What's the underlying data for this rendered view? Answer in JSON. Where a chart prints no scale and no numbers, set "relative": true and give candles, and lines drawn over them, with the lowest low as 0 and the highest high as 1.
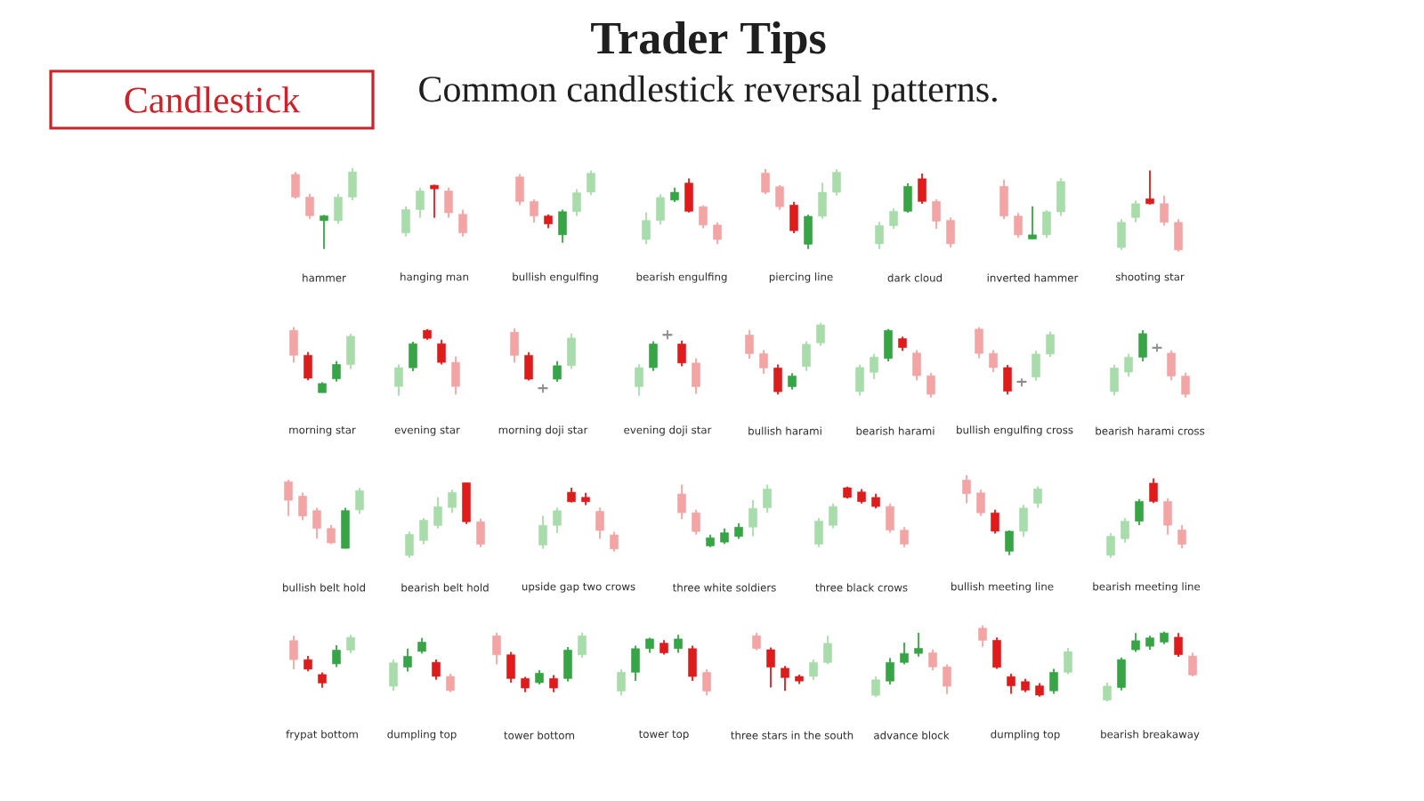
{
  "chart_data": [
    {
      "type": "other",
      "title": "Trader Tips",
      "subtitle": "Common candlestick reversal patterns.",
      "annotations": [
        "Candlestick"
      ]
    },
    {
      "type": "candlestick",
      "relative": true,
      "xlabel": "hammer",
      "categories": [
        null,
        null,
        null,
        null,
        null
      ],
      "ohlc": [
        [
          0.92,
          0.95,
          0.62,
          0.64
        ],
        [
          0.64,
          0.68,
          0.37,
          0.41
        ],
        [
          0.35,
          0.42,
          0,
          0.41
        ],
        [
          0.35,
          0.68,
          0.31,
          0.64
        ],
        [
          0.64,
          1,
          0.6,
          0.95
        ]
      ],
      "colors": [
        "#f3a5a5",
        "#f3a5a5",
        "#37a546",
        "#a9dcab",
        "#a9dcab"
      ]
    },
    {
      "type": "candlestick",
      "relative": true,
      "xlabel": "hanging man",
      "categories": [
        null,
        null,
        null,
        null,
        null
      ],
      "ohlc": [
        [
          0.07,
          0.58,
          0,
          0.52
        ],
        [
          0.52,
          0.94,
          0.36,
          0.88
        ],
        [
          0.99,
          1,
          0.36,
          0.92
        ],
        [
          0.88,
          0.94,
          0.36,
          0.46
        ],
        [
          0.43,
          0.52,
          0,
          0.07
        ]
      ],
      "colors": [
        "#a9dcab",
        "#a9dcab",
        "#e01b1b",
        "#f3a5a5",
        "#f3a5a5"
      ]
    },
    {
      "type": "candlestick",
      "relative": true,
      "xlabel": "bullish engulfing",
      "categories": [
        null,
        null,
        null,
        null,
        null,
        null
      ],
      "ohlc": [
        [
          0.91,
          0.95,
          0.52,
          0.57
        ],
        [
          0.57,
          0.6,
          0.28,
          0.37
        ],
        [
          0.37,
          0.39,
          0.2,
          0.26
        ],
        [
          0.11,
          0.46,
          0,
          0.43
        ],
        [
          0.43,
          0.74,
          0.37,
          0.69
        ],
        [
          0.7,
          1,
          0.66,
          0.96
        ]
      ],
      "colors": [
        "#f3a5a5",
        "#f3a5a5",
        "#e01b1b",
        "#37a546",
        "#a9dcab",
        "#a9dcab"
      ]
    },
    {
      "type": "candlestick",
      "relative": true,
      "xlabel": "bearish engulfing",
      "categories": [
        null,
        null,
        null,
        null,
        null,
        null
      ],
      "ohlc": [
        [
          0.07,
          0.48,
          0,
          0.36
        ],
        [
          0.36,
          0.76,
          0.3,
          0.71
        ],
        [
          0.67,
          0.86,
          0.64,
          0.79
        ],
        [
          0.93,
          1,
          0.48,
          0.5
        ],
        [
          0.57,
          0.59,
          0.24,
          0.29
        ],
        [
          0.29,
          0.33,
          0,
          0.07
        ]
      ],
      "colors": [
        "#a9dcab",
        "#a9dcab",
        "#37a546",
        "#e01b1b",
        "#f3a5a5",
        "#f3a5a5"
      ]
    },
    {
      "type": "candlestick",
      "relative": true,
      "xlabel": "piercing line",
      "categories": [
        null,
        null,
        null,
        null,
        null,
        null
      ],
      "ohlc": [
        [
          0.95,
          1,
          0.69,
          0.71
        ],
        [
          0.78,
          0.8,
          0.49,
          0.53
        ],
        [
          0.55,
          0.59,
          0.2,
          0.23
        ],
        [
          0.06,
          0.43,
          0,
          0.41
        ],
        [
          0.41,
          0.83,
          0.38,
          0.71
        ],
        [
          0.71,
          1,
          0.67,
          0.96
        ]
      ],
      "colors": [
        "#f3a5a5",
        "#f3a5a5",
        "#e01b1b",
        "#37a546",
        "#a9dcab",
        "#a9dcab"
      ]
    },
    {
      "type": "candlestick",
      "relative": true,
      "xlabel": "dark cloud",
      "categories": [
        null,
        null,
        null,
        null,
        null,
        null
      ],
      "ohlc": [
        [
          0.07,
          0.36,
          0,
          0.31
        ],
        [
          0.31,
          0.54,
          0.27,
          0.5
        ],
        [
          0.5,
          0.87,
          0.48,
          0.83
        ],
        [
          0.93,
          1,
          0.6,
          0.63
        ],
        [
          0.63,
          0.66,
          0.27,
          0.37
        ],
        [
          0.38,
          0.42,
          0.02,
          0.07
        ]
      ],
      "colors": [
        "#a9dcab",
        "#a9dcab",
        "#37a546",
        "#e01b1b",
        "#f3a5a5",
        "#f3a5a5"
      ]
    },
    {
      "type": "candlestick",
      "relative": true,
      "xlabel": "inverted hammer",
      "categories": [
        null,
        null,
        null,
        null,
        null
      ],
      "ohlc": [
        [
          0.87,
          0.98,
          0.33,
          0.38
        ],
        [
          0.38,
          0.43,
          0.02,
          0.07
        ],
        [
          0,
          0.54,
          0,
          0.07
        ],
        [
          0.07,
          0.48,
          0.02,
          0.45
        ],
        [
          0.45,
          1,
          0.38,
          0.95
        ]
      ],
      "colors": [
        "#f3a5a5",
        "#f3a5a5",
        "#37a546",
        "#a9dcab",
        "#a9dcab"
      ]
    },
    {
      "type": "candlestick",
      "relative": true,
      "xlabel": "shooting star",
      "categories": [
        null,
        null,
        null,
        null,
        null
      ],
      "ohlc": [
        [
          0.05,
          0.4,
          0.02,
          0.36
        ],
        [
          0.42,
          0.63,
          0.36,
          0.59
        ],
        [
          0.65,
          1,
          0.58,
          0.59
        ],
        [
          0.59,
          0.69,
          0.32,
          0.36
        ],
        [
          0.36,
          0.4,
          0,
          0.02
        ]
      ],
      "colors": [
        "#a9dcab",
        "#a9dcab",
        "#e01b1b",
        "#f3a5a5",
        "#f3a5a5"
      ]
    },
    {
      "type": "candlestick",
      "relative": true,
      "xlabel": "morning star",
      "categories": [
        null,
        null,
        null,
        null,
        null
      ],
      "ohlc": [
        [
          0.95,
          1,
          0.46,
          0.57
        ],
        [
          0.57,
          0.62,
          0.19,
          0.22
        ],
        [
          0,
          0.16,
          0,
          0.14
        ],
        [
          0.21,
          0.48,
          0.17,
          0.43
        ],
        [
          0.43,
          0.9,
          0.36,
          0.86
        ]
      ],
      "colors": [
        "#f3a5a5",
        "#e01b1b",
        "#37a546",
        "#37a546",
        "#a9dcab"
      ]
    },
    {
      "type": "candlestick",
      "relative": true,
      "xlabel": "evening star",
      "categories": [
        null,
        null,
        null,
        null,
        null
      ],
      "ohlc": [
        [
          0.14,
          0.47,
          0,
          0.42
        ],
        [
          0.42,
          0.81,
          0.37,
          0.78
        ],
        [
          0.98,
          1,
          0.84,
          0.86
        ],
        [
          0.78,
          0.84,
          0.47,
          0.5
        ],
        [
          0.5,
          0.59,
          0.02,
          0.14
        ]
      ],
      "colors": [
        "#a9dcab",
        "#37a546",
        "#e01b1b",
        "#e01b1b",
        "#f3a5a5"
      ]
    },
    {
      "type": "candlestick",
      "relative": true,
      "xlabel": "morning doji star",
      "categories": [
        null,
        null,
        null,
        null,
        null
      ],
      "ohlc": [
        [
          0.94,
          1,
          0.47,
          0.58
        ],
        [
          0.58,
          0.63,
          0.19,
          0.21
        ],
        [
          0.07,
          0.13,
          0,
          0.07
        ],
        [
          0.21,
          0.49,
          0.17,
          0.42
        ],
        [
          0.42,
          0.92,
          0.37,
          0.85
        ]
      ],
      "colors": [
        "#f3a5a5",
        "#e01b1b",
        "#8c8c8c",
        "#37a546",
        "#a9dcab"
      ]
    },
    {
      "type": "candlestick",
      "relative": true,
      "xlabel": "evening doji star",
      "categories": [
        null,
        null,
        null,
        null,
        null
      ],
      "ohlc": [
        [
          0.14,
          0.48,
          0,
          0.43
        ],
        [
          0.43,
          0.83,
          0.38,
          0.79
        ],
        [
          0.93,
          1,
          0.86,
          0.93
        ],
        [
          0.79,
          0.84,
          0.45,
          0.5
        ],
        [
          0.5,
          0.57,
          0.03,
          0.14
        ]
      ],
      "colors": [
        "#a9dcab",
        "#37a546",
        "#8c8c8c",
        "#e01b1b",
        "#f3a5a5"
      ]
    },
    {
      "type": "candlestick",
      "relative": true,
      "xlabel": "bullish harami",
      "categories": [
        null,
        null,
        null,
        null,
        null,
        null
      ],
      "ohlc": [
        [
          0.83,
          0.9,
          0.5,
          0.57
        ],
        [
          0.57,
          0.62,
          0.29,
          0.37
        ],
        [
          0.37,
          0.42,
          0,
          0.04
        ],
        [
          0.11,
          0.3,
          0.07,
          0.26
        ],
        [
          0.39,
          0.74,
          0.33,
          0.7
        ],
        [
          0.72,
          1,
          0.68,
          0.97
        ]
      ],
      "colors": [
        "#f3a5a5",
        "#f3a5a5",
        "#e01b1b",
        "#37a546",
        "#a9dcab",
        "#a9dcab"
      ]
    },
    {
      "type": "candlestick",
      "relative": true,
      "xlabel": "bearish harami",
      "categories": [
        null,
        null,
        null,
        null,
        null,
        null
      ],
      "ohlc": [
        [
          0.09,
          0.48,
          0.03,
          0.44
        ],
        [
          0.37,
          0.64,
          0.27,
          0.59
        ],
        [
          0.57,
          1,
          0.53,
          0.98
        ],
        [
          0.86,
          0.89,
          0.68,
          0.73
        ],
        [
          0.65,
          0.69,
          0.25,
          0.32
        ],
        [
          0.32,
          0.36,
          0,
          0.05
        ]
      ],
      "colors": [
        "#a9dcab",
        "#a9dcab",
        "#37a546",
        "#e01b1b",
        "#f3a5a5",
        "#f3a5a5"
      ]
    },
    {
      "type": "candlestick",
      "relative": true,
      "xlabel": "bullish engulfing cross",
      "categories": [
        null,
        null,
        null,
        null,
        null,
        null
      ],
      "ohlc": [
        [
          0.97,
          1,
          0.54,
          0.61
        ],
        [
          0.61,
          0.66,
          0.33,
          0.4
        ],
        [
          0.4,
          0.44,
          0,
          0.05
        ],
        [
          0.19,
          0.24,
          0.12,
          0.19
        ],
        [
          0.26,
          0.65,
          0.21,
          0.6
        ],
        [
          0.6,
          0.93,
          0.56,
          0.89
        ]
      ],
      "colors": [
        "#f3a5a5",
        "#f3a5a5",
        "#e01b1b",
        "#8c8c8c",
        "#a9dcab",
        "#a9dcab"
      ]
    },
    {
      "type": "candlestick",
      "relative": true,
      "xlabel": "bearish harami cross",
      "categories": [
        null,
        null,
        null,
        null,
        null,
        null
      ],
      "ohlc": [
        [
          0.09,
          0.49,
          0.03,
          0.44
        ],
        [
          0.38,
          0.65,
          0.31,
          0.6
        ],
        [
          0.6,
          1,
          0.54,
          0.95
        ],
        [
          0.74,
          0.8,
          0.68,
          0.74
        ],
        [
          0.66,
          0.7,
          0.26,
          0.32
        ],
        [
          0.32,
          0.37,
          0,
          0.05
        ]
      ],
      "colors": [
        "#a9dcab",
        "#a9dcab",
        "#37a546",
        "#8c8c8c",
        "#f3a5a5",
        "#f3a5a5"
      ]
    },
    {
      "type": "candlestick",
      "relative": true,
      "xlabel": "bullish belt hold",
      "categories": [
        null,
        null,
        null,
        null,
        null,
        null
      ],
      "ohlc": [
        [
          0.97,
          1,
          0.47,
          0.7
        ],
        [
          0.76,
          0.81,
          0.41,
          0.47
        ],
        [
          0.55,
          0.59,
          0.14,
          0.29
        ],
        [
          0.29,
          0.34,
          0.06,
          0.08
        ],
        [
          0,
          0.59,
          0,
          0.55
        ],
        [
          0.56,
          0.88,
          0.5,
          0.84
        ]
      ],
      "colors": [
        "#f3a5a5",
        "#f3a5a5",
        "#f3a5a5",
        "#f3a5a5",
        "#37a546",
        "#a9dcab"
      ]
    },
    {
      "type": "candlestick",
      "relative": true,
      "xlabel": "bearish belt hold",
      "categories": [
        null,
        null,
        null,
        null,
        null,
        null
      ],
      "ohlc": [
        [
          0.03,
          0.35,
          0,
          0.31
        ],
        [
          0.23,
          0.53,
          0.18,
          0.5
        ],
        [
          0.43,
          0.81,
          0.39,
          0.68
        ],
        [
          0.67,
          0.91,
          0.6,
          0.87
        ],
        [
          1,
          1,
          0.45,
          0.48
        ],
        [
          0.48,
          0.52,
          0.14,
          0.18
        ]
      ],
      "colors": [
        "#a9dcab",
        "#a9dcab",
        "#a9dcab",
        "#a9dcab",
        "#e01b1b",
        "#f3a5a5"
      ]
    },
    {
      "type": "candlestick",
      "relative": true,
      "xlabel": "upside gap two crows",
      "categories": [
        null,
        null,
        null,
        null,
        null,
        null
      ],
      "ohlc": [
        [
          0.1,
          0.56,
          0.04,
          0.41
        ],
        [
          0.41,
          0.69,
          0.29,
          0.64
        ],
        [
          0.93,
          1,
          0.77,
          0.78
        ],
        [
          0.85,
          0.92,
          0.73,
          0.78
        ],
        [
          0.63,
          0.69,
          0.2,
          0.33
        ],
        [
          0.26,
          0.31,
          0,
          0.04
        ]
      ],
      "colors": [
        "#a9dcab",
        "#a9dcab",
        "#e01b1b",
        "#e01b1b",
        "#f3a5a5",
        "#f3a5a5"
      ]
    },
    {
      "type": "candlestick",
      "relative": true,
      "xlabel": "three white soldiers",
      "categories": [
        null,
        null,
        null,
        null,
        null,
        null,
        null
      ],
      "ohlc": [
        [
          0.85,
          1,
          0.45,
          0.55
        ],
        [
          0.55,
          0.6,
          0.2,
          0.25
        ],
        [
          0.02,
          0.2,
          0,
          0.15
        ],
        [
          0.08,
          0.3,
          0.05,
          0.23
        ],
        [
          0.17,
          0.38,
          0.13,
          0.32
        ],
        [
          0.32,
          0.75,
          0.17,
          0.62
        ],
        [
          0.63,
          1,
          0.55,
          0.93
        ]
      ],
      "colors": [
        "#f3a5a5",
        "#f3a5a5",
        "#37a546",
        "#37a546",
        "#37a546",
        "#a9dcab",
        "#a9dcab"
      ]
    },
    {
      "type": "candlestick",
      "relative": true,
      "xlabel": "three black crows",
      "categories": [
        null,
        null,
        null,
        null,
        null,
        null,
        null
      ],
      "ohlc": [
        [
          0.05,
          0.48,
          0,
          0.43
        ],
        [
          0.36,
          0.72,
          0.31,
          0.67
        ],
        [
          0.98,
          1,
          0.8,
          0.82
        ],
        [
          0.91,
          0.96,
          0.72,
          0.75
        ],
        [
          0.82,
          0.88,
          0.64,
          0.67
        ],
        [
          0.67,
          0.72,
          0.24,
          0.28
        ],
        [
          0.28,
          0.33,
          0,
          0.05
        ]
      ],
      "colors": [
        "#a9dcab",
        "#a9dcab",
        "#e01b1b",
        "#e01b1b",
        "#e01b1b",
        "#f3a5a5",
        "#f3a5a5"
      ]
    },
    {
      "type": "candlestick",
      "relative": true,
      "xlabel": "bullish meeting line",
      "categories": [
        null,
        null,
        null,
        null,
        null,
        null
      ],
      "ohlc": [
        [
          0.94,
          1,
          0.65,
          0.77
        ],
        [
          0.78,
          0.82,
          0.49,
          0.53
        ],
        [
          0.53,
          0.57,
          0.27,
          0.3
        ],
        [
          0.05,
          0.31,
          0,
          0.3
        ],
        [
          0.3,
          0.63,
          0.23,
          0.59
        ],
        [
          0.65,
          0.86,
          0.59,
          0.83
        ]
      ],
      "colors": [
        "#f3a5a5",
        "#f3a5a5",
        "#e01b1b",
        "#37a546",
        "#a9dcab",
        "#a9dcab"
      ]
    },
    {
      "type": "candlestick",
      "relative": true,
      "xlabel": "bearish meeting line",
      "categories": [
        null,
        null,
        null,
        null,
        null,
        null
      ],
      "ohlc": [
        [
          0.03,
          0.31,
          0,
          0.27
        ],
        [
          0.24,
          0.5,
          0.19,
          0.46
        ],
        [
          0.46,
          0.74,
          0.41,
          0.71
        ],
        [
          0.94,
          1,
          0.69,
          0.71
        ],
        [
          0.71,
          0.75,
          0.29,
          0.41
        ],
        [
          0.35,
          0.41,
          0.12,
          0.17
        ]
      ],
      "colors": [
        "#a9dcab",
        "#a9dcab",
        "#37a546",
        "#e01b1b",
        "#f3a5a5",
        "#f3a5a5"
      ]
    },
    {
      "type": "candlestick",
      "relative": true,
      "xlabel": "frypat bottom",
      "categories": [
        null,
        null,
        null,
        null,
        null
      ],
      "ohlc": [
        [
          0.89,
          0.98,
          0.35,
          0.53
        ],
        [
          0.53,
          0.6,
          0.31,
          0.35
        ],
        [
          0.25,
          0.29,
          0,
          0.09
        ],
        [
          0.45,
          0.8,
          0.39,
          0.71
        ],
        [
          0.71,
          1,
          0.65,
          0.95
        ]
      ],
      "colors": [
        "#f3a5a5",
        "#e01b1b",
        "#e01b1b",
        "#37a546",
        "#a9dcab"
      ]
    },
    {
      "type": "candlestick",
      "relative": true,
      "xlabel": "dumpling top",
      "categories": [
        null,
        null,
        null,
        null,
        null
      ],
      "ohlc": [
        [
          0.11,
          0.6,
          0.03,
          0.54
        ],
        [
          0.46,
          0.8,
          0.38,
          0.66
        ],
        [
          0.75,
          1,
          0.71,
          0.92
        ],
        [
          0.55,
          0.6,
          0.23,
          0.29
        ],
        [
          0.29,
          0.34,
          0,
          0.03
        ]
      ],
      "colors": [
        "#a9dcab",
        "#37a546",
        "#37a546",
        "#e01b1b",
        "#f3a5a5"
      ]
    },
    {
      "type": "candlestick",
      "relative": true,
      "xlabel": "tower bottom",
      "categories": [
        null,
        null,
        null,
        null,
        null,
        null,
        null
      ],
      "ohlc": [
        [
          0.95,
          1,
          0.47,
          0.63
        ],
        [
          0.63,
          0.68,
          0.16,
          0.23
        ],
        [
          0.23,
          0.26,
          0,
          0.07
        ],
        [
          0.16,
          0.37,
          0.13,
          0.32
        ],
        [
          0.23,
          0.29,
          0,
          0.07
        ],
        [
          0.23,
          0.76,
          0.18,
          0.71
        ],
        [
          0.63,
          1,
          0.58,
          0.95
        ]
      ],
      "colors": [
        "#f3a5a5",
        "#e01b1b",
        "#e01b1b",
        "#37a546",
        "#e01b1b",
        "#37a546",
        "#a9dcab"
      ]
    },
    {
      "type": "candlestick",
      "relative": true,
      "xlabel": "tower top",
      "categories": [
        null,
        null,
        null,
        null,
        null,
        null,
        null
      ],
      "ohlc": [
        [
          0.07,
          0.43,
          0,
          0.38
        ],
        [
          0.38,
          0.82,
          0.24,
          0.77
        ],
        [
          0.77,
          0.95,
          0.7,
          0.93
        ],
        [
          0.86,
          0.91,
          0.67,
          0.7
        ],
        [
          0.77,
          1,
          0.7,
          0.93
        ],
        [
          0.77,
          0.82,
          0.24,
          0.31
        ],
        [
          0.38,
          0.43,
          0,
          0.07
        ]
      ],
      "colors": [
        "#a9dcab",
        "#37a546",
        "#37a546",
        "#e01b1b",
        "#37a546",
        "#e01b1b",
        "#f3a5a5"
      ]
    },
    {
      "type": "candlestick",
      "relative": true,
      "xlabel": "three stars in the south",
      "categories": [
        null,
        null,
        null,
        null,
        null,
        null
      ],
      "ohlc": [
        [
          0.95,
          1,
          0.7,
          0.73
        ],
        [
          0.71,
          0.75,
          0.06,
          0.41
        ],
        [
          0.39,
          0.43,
          0,
          0.23
        ],
        [
          0.25,
          0.28,
          0.12,
          0.17
        ],
        [
          0.25,
          0.54,
          0.19,
          0.49
        ],
        [
          0.49,
          0.95,
          0.46,
          0.82
        ]
      ],
      "colors": [
        "#f3a5a5",
        "#e01b1b",
        "#e01b1b",
        "#e01b1b",
        "#a9dcab",
        "#a9dcab"
      ]
    },
    {
      "type": "candlestick",
      "relative": true,
      "xlabel": "advance block",
      "categories": [
        null,
        null,
        null,
        null,
        null,
        null
      ],
      "ohlc": [
        [
          0.03,
          0.32,
          0,
          0.27
        ],
        [
          0.25,
          0.61,
          0.2,
          0.54
        ],
        [
          0.54,
          0.85,
          0.51,
          0.68
        ],
        [
          0.68,
          1,
          0.63,
          0.76
        ],
        [
          0.69,
          0.74,
          0.42,
          0.47
        ],
        [
          0.47,
          0.51,
          0.05,
          0.17
        ]
      ],
      "colors": [
        "#a9dcab",
        "#37a546",
        "#37a546",
        "#37a546",
        "#f3a5a5",
        "#f3a5a5"
      ]
    },
    {
      "type": "candlestick",
      "relative": true,
      "xlabel": "dumpling top",
      "categories": [
        null,
        null,
        null,
        null,
        null,
        null,
        null
      ],
      "ohlc": [
        [
          0.96,
          1,
          0.7,
          0.79
        ],
        [
          0.79,
          0.83,
          0.39,
          0.41
        ],
        [
          0.28,
          0.32,
          0.04,
          0.15
        ],
        [
          0.21,
          0.25,
          0.06,
          0.09
        ],
        [
          0.15,
          0.19,
          0,
          0.02
        ],
        [
          0.08,
          0.39,
          0.04,
          0.34
        ],
        [
          0.34,
          0.68,
          0.31,
          0.63
        ]
      ],
      "colors": [
        "#f3a5a5",
        "#e01b1b",
        "#e01b1b",
        "#e01b1b",
        "#e01b1b",
        "#37a546",
        "#a9dcab"
      ]
    },
    {
      "type": "candlestick",
      "relative": true,
      "xlabel": "bearish breakaway",
      "categories": [
        null,
        null,
        null,
        null,
        null,
        null,
        null
      ],
      "ohlc": [
        [
          0.02,
          0.27,
          0,
          0.22
        ],
        [
          0.2,
          0.63,
          0.16,
          0.6
        ],
        [
          0.74,
          0.98,
          0.71,
          0.87
        ],
        [
          0.79,
          0.94,
          0.74,
          0.91
        ],
        [
          0.85,
          1,
          0.82,
          0.98
        ],
        [
          0.92,
          0.98,
          0.64,
          0.67
        ],
        [
          0.65,
          0.7,
          0.36,
          0.38
        ]
      ],
      "colors": [
        "#a9dcab",
        "#37a546",
        "#37a546",
        "#37a546",
        "#37a546",
        "#e01b1b",
        "#f3a5a5"
      ]
    }
  ]
}
